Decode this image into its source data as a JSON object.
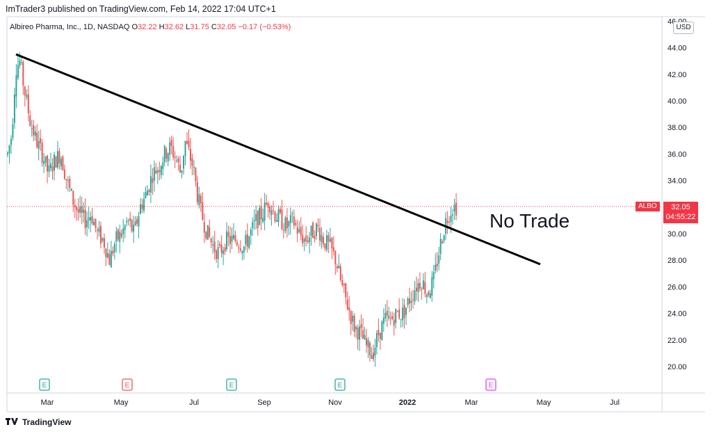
{
  "published": "ImTrader3 published on TradingView.com, Feb 14, 2022 17:04 UTC+1",
  "legend": {
    "symbol": "Albireo Pharma, Inc., 1D, NASDAQ",
    "o_label": "O",
    "o": "32.22",
    "h_label": "H",
    "h": "32.62",
    "l_label": "L",
    "l": "31.75",
    "c_label": "C",
    "c": "32.05",
    "change": "−0.17 (−0.53%)"
  },
  "currency": "USD",
  "price_tag": {
    "symbol": "ALBO",
    "price": "32.05",
    "countdown": "04:55:22"
  },
  "annotation": "No Trade",
  "footer": {
    "brand": "TradingView"
  },
  "colors": {
    "up": "#26a69a",
    "down": "#ef5350",
    "trendline": "#000000",
    "tag": "#f23645"
  },
  "chart_data": {
    "type": "candlestick",
    "title": "Albireo Pharma, Inc., 1D, NASDAQ",
    "ylim": [
      18,
      46
    ],
    "y_ticks": [
      "46.00",
      "44.00",
      "42.00",
      "40.00",
      "38.00",
      "36.00",
      "34.00",
      "32.00",
      "30.00",
      "28.00",
      "26.00",
      "24.00",
      "22.00",
      "20.00"
    ],
    "x_ticks": [
      "Mar",
      "May",
      "Jul",
      "Sep",
      "Nov",
      "2022",
      "Mar",
      "May",
      "Jul"
    ],
    "last_price": 32.05,
    "earnings_markers": [
      {
        "label": "E",
        "position": "early Mar 2021",
        "type": "beat"
      },
      {
        "label": "E",
        "position": "mid May 2021",
        "type": "miss"
      },
      {
        "label": "E",
        "position": "early Aug 2021",
        "type": "beat"
      },
      {
        "label": "E",
        "position": "early Nov 2021",
        "type": "beat"
      },
      {
        "label": "E",
        "position": "late Feb 2022",
        "type": "upcoming"
      }
    ],
    "trendline": {
      "from": {
        "date": "early Feb 2021",
        "price": 43.5
      },
      "to": {
        "date": "early May 2022",
        "price": 27.7
      }
    },
    "price_path": [
      [
        0,
        36
      ],
      [
        4,
        37.5
      ],
      [
        8,
        42.5
      ],
      [
        12,
        43
      ],
      [
        16,
        41
      ],
      [
        22,
        38.5
      ],
      [
        28,
        37
      ],
      [
        34,
        36
      ],
      [
        40,
        34.5
      ],
      [
        46,
        35.5
      ],
      [
        52,
        36
      ],
      [
        58,
        34
      ],
      [
        64,
        32.5
      ],
      [
        70,
        31.5
      ],
      [
        76,
        31
      ],
      [
        82,
        31.5
      ],
      [
        88,
        30
      ],
      [
        94,
        29.5
      ],
      [
        100,
        28
      ],
      [
        106,
        29.5
      ],
      [
        112,
        30
      ],
      [
        118,
        31
      ],
      [
        124,
        30
      ],
      [
        130,
        32
      ],
      [
        136,
        33
      ],
      [
        142,
        34.5
      ],
      [
        148,
        35
      ],
      [
        154,
        36
      ],
      [
        160,
        36.5
      ],
      [
        166,
        35.5
      ],
      [
        170,
        34.5
      ],
      [
        174,
        37
      ],
      [
        178,
        36
      ],
      [
        182,
        35
      ],
      [
        186,
        33
      ],
      [
        190,
        31.5
      ],
      [
        196,
        30
      ],
      [
        202,
        29
      ],
      [
        208,
        28.5
      ],
      [
        214,
        29.5
      ],
      [
        220,
        29.5
      ],
      [
        226,
        29.5
      ],
      [
        232,
        29
      ],
      [
        238,
        30
      ],
      [
        244,
        31
      ],
      [
        250,
        31.5
      ],
      [
        256,
        32.5
      ],
      [
        262,
        31.5
      ],
      [
        268,
        31
      ],
      [
        274,
        30.5
      ],
      [
        280,
        31
      ],
      [
        286,
        30
      ],
      [
        292,
        29.5
      ],
      [
        298,
        30
      ],
      [
        304,
        30.5
      ],
      [
        310,
        29.5
      ],
      [
        316,
        29
      ],
      [
        322,
        28
      ],
      [
        328,
        26
      ],
      [
        334,
        24.5
      ],
      [
        340,
        23
      ],
      [
        346,
        22.5
      ],
      [
        352,
        21.5
      ],
      [
        358,
        21
      ],
      [
        364,
        22.5
      ],
      [
        370,
        23.5
      ],
      [
        376,
        23.5
      ],
      [
        382,
        24
      ],
      [
        388,
        24
      ],
      [
        394,
        25
      ],
      [
        400,
        26
      ],
      [
        406,
        26.5
      ],
      [
        412,
        25.5
      ],
      [
        418,
        26.5
      ],
      [
        424,
        29
      ],
      [
        430,
        31
      ],
      [
        436,
        32
      ],
      [
        440,
        32.05
      ]
    ]
  }
}
